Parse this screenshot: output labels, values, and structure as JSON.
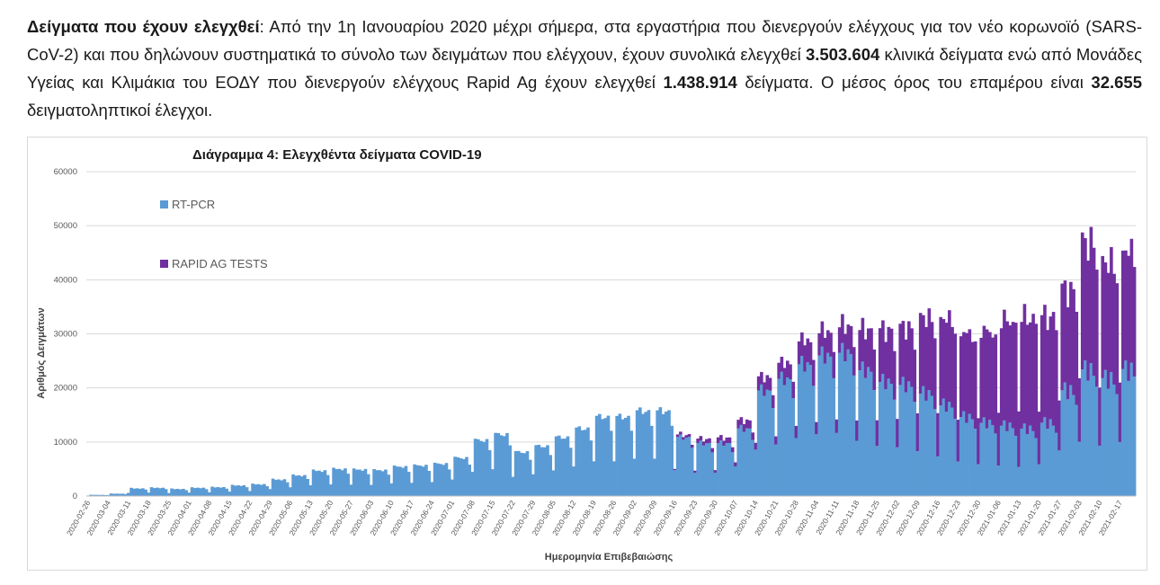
{
  "paragraph": {
    "heading": "Δείγματα που έχουν ελεγχθεί",
    "colon": ":",
    "text1": "  Από την 1η Ιανουαρίου 2020 μέχρι σήμερα, στα εργαστήρια που διενεργούν ελέγχους για τον νέο κορωνοϊό (SARS-CoV-2) και που δηλώνουν συστηματικά το σύνολο των δειγμάτων που ελέγχουν, έχουν συνολικά ελεγχθεί ",
    "value1": "3.503.604",
    "text2": " κλινικά δείγματα ενώ από Μονάδες Υγείας και Κλιμάκια του ΕΟΔΥ που διενεργούν ελέγχους Rapid Ag έχουν ελεγχθεί ",
    "value2": "1.438.914",
    "text3": " δείγματα. Ο μέσος όρος του επαμέρου είναι ",
    "value3": "32.655",
    "text4": " δειγματοληπτικοί έλεγχοι."
  },
  "colors": {
    "rt_pcr": "#5b9bd5",
    "rapid": "#7030a0"
  },
  "chart_data": {
    "type": "bar",
    "stacked": true,
    "title": "Διάγραμμα 4: Ελεγχθέντα δείγματα COVID-19",
    "xlabel": "Ημερομηνία Επιβεβαιώσης",
    "ylabel": "Αριθμός Δειγμάτων",
    "ylim": [
      0,
      60000
    ],
    "yticks": [
      0,
      10000,
      20000,
      30000,
      40000,
      50000,
      60000
    ],
    "legend": "top-left",
    "x_start": "2020-02-26",
    "x_end": "2021-02-22",
    "xticks": [
      "2020-02-26",
      "2020-03-04",
      "2020-03-11",
      "2020-03-18",
      "2020-03-25",
      "2020-04-01",
      "2020-04-08",
      "2020-04-15",
      "2020-04-22",
      "2020-04-29",
      "2020-05-06",
      "2020-05-13",
      "2020-05-20",
      "2020-05-27",
      "2020-06-03",
      "2020-06-10",
      "2020-06-17",
      "2020-06-24",
      "2020-07-01",
      "2020-07-08",
      "2020-07-15",
      "2020-07-22",
      "2020-07-29",
      "2020-08-05",
      "2020-08-12",
      "2020-08-19",
      "2020-08-26",
      "2020-09-02",
      "2020-09-09",
      "2020-09-16",
      "2020-09-23",
      "2020-09-30",
      "2020-10-07",
      "2020-10-14",
      "2020-10-21",
      "2020-10-28",
      "2020-11-04",
      "2020-11-11",
      "2020-11-18",
      "2020-11-25",
      "2020-12-02",
      "2020-12-09",
      "2020-12-16",
      "2020-12-23",
      "2020-12-30",
      "2021-01-06",
      "2021-01-13",
      "2021-01-20",
      "2021-01-27",
      "2021-02-03",
      "2021-02-10",
      "2021-02-17"
    ],
    "series": [
      {
        "name": "RT-PCR",
        "weekly_values": [
          200,
          400,
          1300,
          1400,
          1200,
          1400,
          1500,
          1800,
          2000,
          2800,
          3500,
          4300,
          4600,
          4500,
          4400,
          5000,
          5200,
          5500,
          6500,
          9500,
          10500,
          7500,
          8500,
          10000,
          11500,
          13500,
          13500,
          14500,
          14500,
          10000,
          9000,
          9000,
          11500,
          18000,
          20000,
          22500,
          24000,
          24500,
          21500,
          19500,
          19000,
          17500,
          15500,
          13500,
          12500,
          12000,
          11500,
          12500,
          18000,
          21500,
          20000,
          21500
        ]
      },
      {
        "name": "RAPID AG TESTS",
        "weekly_values": [
          0,
          0,
          0,
          0,
          0,
          0,
          0,
          0,
          0,
          0,
          0,
          0,
          0,
          0,
          0,
          0,
          0,
          0,
          0,
          0,
          0,
          0,
          0,
          0,
          0,
          0,
          0,
          0,
          0,
          500,
          800,
          1000,
          1500,
          2500,
          3000,
          4500,
          4500,
          5000,
          7500,
          9500,
          10500,
          14000,
          16000,
          15500,
          17000,
          19500,
          20500,
          19500,
          18500,
          23500,
          21500,
          22000
        ]
      }
    ]
  }
}
